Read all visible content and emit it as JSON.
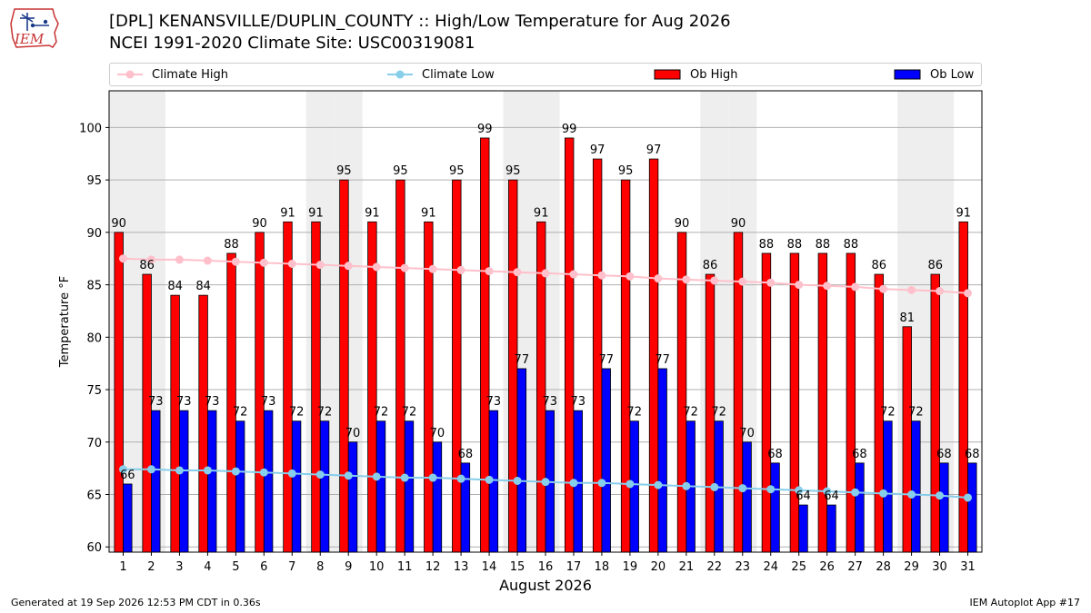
{
  "header": {
    "title_line1": "[DPL] KENANSVILLE/DUPLIN_COUNTY :: High/Low Temperature for Aug 2026",
    "title_line2": "NCEI 1991-2020 Climate Site: USC00319081",
    "logo_text": "IEM"
  },
  "legend": {
    "climate_high": "Climate High",
    "climate_low": "Climate Low",
    "ob_high": "Ob High",
    "ob_low": "Ob Low"
  },
  "colors": {
    "ob_high": "#ff0000",
    "ob_low": "#0000ff",
    "climate_high": "#ffc0cb",
    "climate_low": "#87ceeb",
    "weekend_shade": "#eeeeee",
    "grid": "#b0b0b0"
  },
  "chart_data": {
    "type": "bar",
    "xlabel": "August 2026",
    "ylabel": "Temperature °F",
    "ylim": [
      59.5,
      103.5
    ],
    "yticks": [
      60,
      65,
      70,
      75,
      80,
      85,
      90,
      95,
      100
    ],
    "grid": true,
    "legend_placement": "top",
    "categories": [
      1,
      2,
      3,
      4,
      5,
      6,
      7,
      8,
      9,
      10,
      11,
      12,
      13,
      14,
      15,
      16,
      17,
      18,
      19,
      20,
      21,
      22,
      23,
      24,
      25,
      26,
      27,
      28,
      29,
      30,
      31
    ],
    "weekend_days": [
      1,
      2,
      8,
      9,
      15,
      16,
      22,
      23,
      29,
      30
    ],
    "series": [
      {
        "name": "Ob High",
        "kind": "bar",
        "values": [
          90,
          86,
          84,
          84,
          88,
          90,
          91,
          91,
          95,
          91,
          95,
          91,
          95,
          99,
          95,
          91,
          99,
          97,
          95,
          97,
          90,
          86,
          90,
          88,
          88,
          88,
          88,
          86,
          81,
          86,
          91
        ]
      },
      {
        "name": "Ob Low",
        "kind": "bar",
        "values": [
          66,
          73,
          73,
          73,
          72,
          73,
          72,
          72,
          70,
          72,
          72,
          70,
          68,
          73,
          77,
          73,
          73,
          77,
          72,
          77,
          72,
          72,
          70,
          68,
          64,
          64,
          68,
          72,
          72,
          68,
          68
        ]
      },
      {
        "name": "Climate High",
        "kind": "line",
        "values": [
          87.5,
          87.4,
          87.4,
          87.3,
          87.2,
          87.1,
          87.0,
          86.9,
          86.8,
          86.7,
          86.6,
          86.5,
          86.4,
          86.3,
          86.2,
          86.1,
          86.0,
          85.9,
          85.8,
          85.6,
          85.5,
          85.4,
          85.3,
          85.2,
          85.0,
          84.9,
          84.8,
          84.6,
          84.5,
          84.4,
          84.2
        ]
      },
      {
        "name": "Climate Low",
        "kind": "line",
        "values": [
          67.4,
          67.4,
          67.3,
          67.3,
          67.2,
          67.1,
          67.0,
          66.9,
          66.8,
          66.7,
          66.6,
          66.6,
          66.5,
          66.4,
          66.3,
          66.2,
          66.1,
          66.1,
          66.0,
          65.9,
          65.8,
          65.7,
          65.6,
          65.5,
          65.4,
          65.3,
          65.2,
          65.1,
          65.0,
          64.9,
          64.7
        ]
      }
    ]
  },
  "footer": {
    "generated": "Generated at 19 Sep 2026 12:53 PM CDT in 0.36s",
    "app": "IEM Autoplot App #17"
  }
}
